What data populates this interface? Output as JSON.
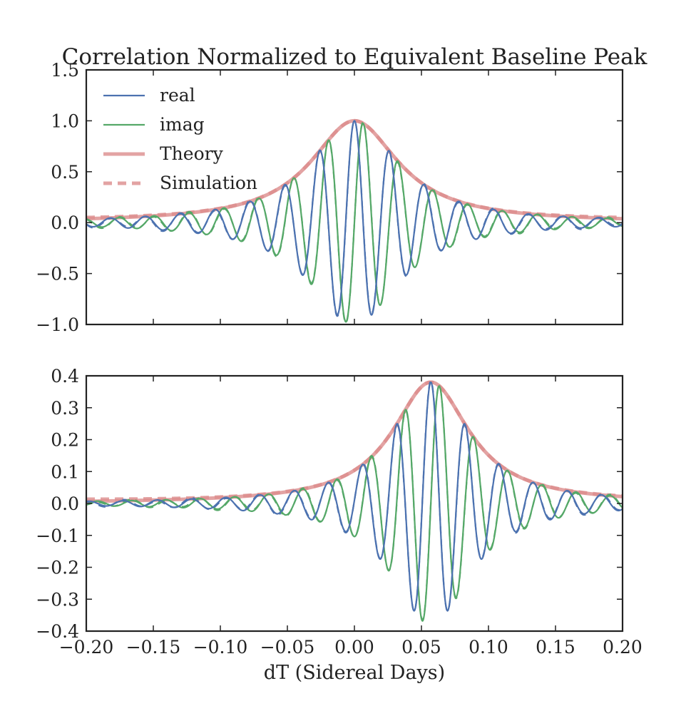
{
  "title": "Correlation Normalized to Equivalent Baseline Peak",
  "xlabel": "dT (Sidereal Days)",
  "colors": {
    "real": "#4c72b0",
    "imag": "#55a868",
    "theory": "#dc8c8c"
  },
  "legend": {
    "placement": "upper-left",
    "entries": [
      {
        "label": "real",
        "style": "solid",
        "color": "#4c72b0"
      },
      {
        "label": "imag",
        "style": "solid",
        "color": "#55a868"
      },
      {
        "label": "Theory",
        "style": "thick-solid",
        "color": "#dc8c8c"
      },
      {
        "label": "Simulation",
        "style": "thick-dashed",
        "color": "#dc8c8c"
      }
    ]
  },
  "chart_data": [
    {
      "type": "line",
      "panel": "top",
      "title": "Correlation Normalized to Equivalent Baseline Peak",
      "xlabel": "",
      "ylabel": "",
      "xlim": [
        -0.2,
        0.2
      ],
      "ylim": [
        -1.0,
        1.5
      ],
      "xticks": [
        -0.2,
        -0.15,
        -0.1,
        -0.05,
        0.0,
        0.05,
        0.1,
        0.15,
        0.2
      ],
      "xtick_labels_shown": false,
      "yticks": [
        -1.0,
        -0.5,
        0.0,
        0.5,
        1.0,
        1.5
      ],
      "ytick_labels": [
        "−1.0",
        "−0.5",
        "0.0",
        "0.5",
        "1.0",
        "1.5"
      ],
      "grid": false,
      "model": {
        "envelope_center": 0.0,
        "envelope_peak": 1.0,
        "envelope_halfwidth_at_half_max": 0.04,
        "fringe_period": 0.026
      },
      "series": [
        {
          "name": "real",
          "points": [
            [
              -0.2,
              0.0
            ],
            [
              -0.052,
              0.23
            ],
            [
              -0.039,
              -0.38
            ],
            [
              -0.026,
              0.6
            ],
            [
              -0.013,
              -0.83
            ],
            [
              0.0,
              1.0
            ],
            [
              0.013,
              -0.83
            ],
            [
              0.026,
              0.6
            ],
            [
              0.039,
              -0.38
            ],
            [
              0.052,
              0.23
            ],
            [
              0.2,
              0.0
            ]
          ]
        },
        {
          "name": "imag",
          "points": [
            [
              -0.2,
              -0.02
            ],
            [
              -0.046,
              0.3
            ],
            [
              -0.033,
              -0.48
            ],
            [
              -0.02,
              0.72
            ],
            [
              -0.006,
              -0.95
            ],
            [
              0.007,
              0.95
            ],
            [
              0.02,
              -0.72
            ],
            [
              0.033,
              0.46
            ],
            [
              0.046,
              -0.3
            ],
            [
              0.2,
              0.0
            ]
          ]
        },
        {
          "name": "Theory",
          "points": [
            [
              -0.2,
              0.0
            ],
            [
              -0.1,
              0.03
            ],
            [
              -0.06,
              0.13
            ],
            [
              -0.04,
              0.3
            ],
            [
              -0.02,
              0.72
            ],
            [
              0.0,
              1.0
            ],
            [
              0.02,
              0.72
            ],
            [
              0.04,
              0.3
            ],
            [
              0.06,
              0.13
            ],
            [
              0.1,
              0.03
            ],
            [
              0.2,
              0.0
            ]
          ]
        },
        {
          "name": "Simulation",
          "points": [
            [
              -0.2,
              0.03
            ],
            [
              -0.1,
              0.03
            ],
            [
              -0.04,
              0.3
            ],
            [
              0.0,
              1.0
            ],
            [
              0.04,
              0.3
            ],
            [
              0.1,
              0.03
            ],
            [
              0.2,
              0.03
            ]
          ]
        }
      ]
    },
    {
      "type": "line",
      "panel": "bottom",
      "title": "",
      "xlabel": "dT (Sidereal Days)",
      "ylabel": "",
      "xlim": [
        -0.2,
        0.2
      ],
      "ylim": [
        -0.4,
        0.4
      ],
      "xticks": [
        -0.2,
        -0.15,
        -0.1,
        -0.05,
        0.0,
        0.05,
        0.1,
        0.15,
        0.2
      ],
      "xtick_labels": [
        "−0.20",
        "−0.15",
        "−0.10",
        "−0.05",
        "0.00",
        "0.05",
        "0.10",
        "0.15",
        "0.20"
      ],
      "yticks": [
        -0.4,
        -0.3,
        -0.2,
        -0.1,
        0.0,
        0.1,
        0.2,
        0.3,
        0.4
      ],
      "ytick_labels": [
        "−0.4",
        "−0.3",
        "−0.2",
        "−0.1",
        "0.0",
        "0.1",
        "0.2",
        "0.3",
        "0.4"
      ],
      "grid": false,
      "model": {
        "envelope_center": 0.057,
        "envelope_peak": 0.38,
        "envelope_halfwidth_at_half_max": 0.035,
        "fringe_period": 0.0255
      },
      "series": [
        {
          "name": "real",
          "points": [
            [
              -0.2,
              0.0
            ],
            [
              0.025,
              0.14
            ],
            [
              0.037,
              -0.26
            ],
            [
              0.05,
              0.37
            ],
            [
              0.063,
              -0.37
            ],
            [
              0.075,
              0.31
            ],
            [
              0.088,
              -0.23
            ],
            [
              0.1,
              0.16
            ],
            [
              0.113,
              -0.1
            ],
            [
              0.2,
              0.0
            ]
          ]
        },
        {
          "name": "imag",
          "points": [
            [
              -0.2,
              0.0
            ],
            [
              0.03,
              0.2
            ],
            [
              0.043,
              -0.32
            ],
            [
              0.056,
              0.37
            ],
            [
              0.069,
              -0.34
            ],
            [
              0.082,
              0.27
            ],
            [
              0.094,
              -0.19
            ],
            [
              0.107,
              0.13
            ],
            [
              0.2,
              0.0
            ]
          ]
        },
        {
          "name": "Theory",
          "points": [
            [
              -0.2,
              0.005
            ],
            [
              -0.05,
              0.01
            ],
            [
              0.0,
              0.04
            ],
            [
              0.03,
              0.2
            ],
            [
              0.057,
              0.38
            ],
            [
              0.085,
              0.25
            ],
            [
              0.12,
              0.08
            ],
            [
              0.15,
              0.03
            ],
            [
              0.2,
              0.005
            ]
          ]
        },
        {
          "name": "Simulation",
          "points": [
            [
              -0.2,
              0.01
            ],
            [
              0.0,
              0.04
            ],
            [
              0.057,
              0.38
            ],
            [
              0.12,
              0.08
            ],
            [
              0.2,
              0.01
            ]
          ]
        }
      ]
    }
  ]
}
